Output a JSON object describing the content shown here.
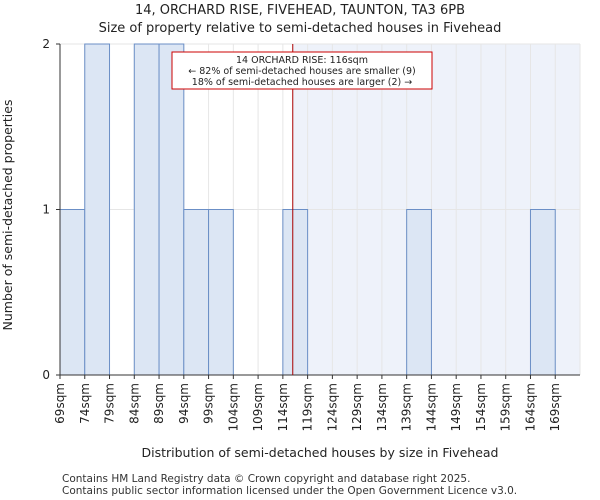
{
  "title_line1": "14, ORCHARD RISE, FIVEHEAD, TAUNTON, TA3 6PB",
  "title_line2": "Size of property relative to semi-detached houses in Fivehead",
  "footer_line1": "Contains HM Land Registry data © Crown copyright and database right 2025.",
  "footer_line2": "Contains public sector information licensed under the Open Government Licence v3.0.",
  "colors": {
    "bar_fill": "#dce6f4",
    "bar_edge": "#6b8fc6",
    "highlight_bg": "#eef2fa",
    "marker": "#aa0000",
    "annot_border": "#cc0000",
    "grid": "#e6e6e6"
  },
  "chart_data": {
    "type": "bar",
    "title": "Size of property relative to semi-detached houses in Fivehead",
    "xlabel": "Distribution of semi-detached houses by size in Fivehead",
    "ylabel": "Number of semi-detached properties",
    "categories": [
      "69sqm",
      "74sqm",
      "79sqm",
      "84sqm",
      "89sqm",
      "94sqm",
      "99sqm",
      "104sqm",
      "109sqm",
      "114sqm",
      "119sqm",
      "124sqm",
      "129sqm",
      "134sqm",
      "139sqm",
      "144sqm",
      "149sqm",
      "154sqm",
      "159sqm",
      "164sqm",
      "169sqm"
    ],
    "values": [
      1,
      2,
      0,
      2,
      2,
      1,
      1,
      0,
      0,
      1,
      0,
      0,
      0,
      0,
      1,
      0,
      0,
      0,
      0,
      1,
      0
    ],
    "bin_width": 5,
    "ylim": [
      0,
      2
    ],
    "yticks": [
      0,
      1,
      2
    ],
    "marker_value": 116,
    "annotation": {
      "line1": "14 ORCHARD RISE: 116sqm",
      "line2": "← 82% of semi-detached houses are smaller (9)",
      "line3": "18% of semi-detached houses are larger (2) →"
    },
    "grid": true
  }
}
